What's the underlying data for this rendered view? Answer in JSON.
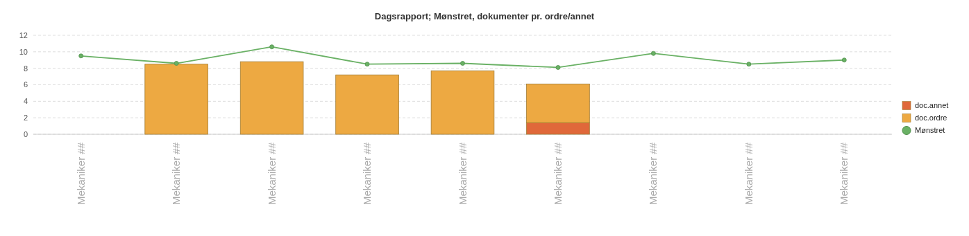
{
  "chart_data": {
    "type": "bar",
    "title": "Dagsrapport; Mønstret, dokumenter pr. ordre/annet",
    "categories": [
      "Mekaniker ##",
      "Mekaniker ##",
      "Mekaniker ##",
      "Mekaniker ##",
      "Mekaniker ##",
      "Mekaniker ##",
      "Mekaniker ##",
      "Mekaniker ##",
      "Mekaniker ##"
    ],
    "stacked": true,
    "ylim": [
      0,
      12
    ],
    "yticks": [
      0,
      2,
      4,
      6,
      8,
      10,
      12
    ],
    "grid": "y",
    "legend": "right",
    "series": [
      {
        "name": "doc.annet",
        "color": "#e0683a",
        "values": [
          null,
          null,
          null,
          null,
          null,
          1.4,
          null,
          null,
          null
        ]
      },
      {
        "name": "doc.ordre",
        "color": "#eda942",
        "values": [
          null,
          8.5,
          8.8,
          7.2,
          7.7,
          4.7,
          null,
          null,
          null
        ]
      },
      {
        "name": "Mønstret",
        "type": "line",
        "color": "#6ab165",
        "marker": "circle",
        "values": [
          9.5,
          8.6,
          10.6,
          8.5,
          8.6,
          8.1,
          9.8,
          8.5,
          9.0
        ]
      }
    ]
  }
}
